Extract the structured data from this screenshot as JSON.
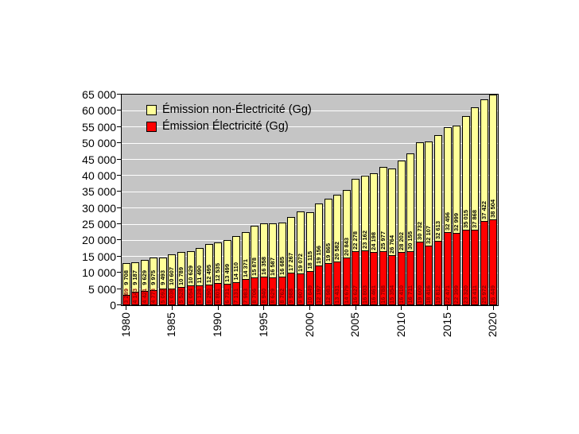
{
  "legend": {
    "items": [
      {
        "label": "Émission non-Électricité (Gg)",
        "color": "#ffff99",
        "icon": "yellow-swatch-icon"
      },
      {
        "label": "Émission Électricité (Gg)",
        "color": "#ff0000",
        "icon": "red-swatch-icon"
      }
    ]
  },
  "y_axis": {
    "tick_labels": [
      "0",
      "5 000",
      "10 000",
      "15 000",
      "20 000",
      "25 000",
      "30 000",
      "35 000",
      "40 000",
      "45 000",
      "50 000",
      "55 000",
      "60 000",
      "65 000"
    ],
    "min": 0,
    "max": 65000,
    "step": 5000
  },
  "x_axis": {
    "tick_labels": [
      "1980",
      "1985",
      "1990",
      "1995",
      "2000",
      "2005",
      "2010",
      "2015",
      "2020"
    ]
  },
  "chart_data": {
    "type": "bar",
    "stacked": true,
    "title": "",
    "xlabel": "",
    "ylabel": "",
    "ylim": [
      0,
      65000
    ],
    "grid": "horizontal-white-on-gray",
    "legend_position": "top-left-inside",
    "x": [
      1980,
      1981,
      1982,
      1983,
      1984,
      1985,
      1986,
      1987,
      1988,
      1989,
      1990,
      1991,
      1992,
      1993,
      1994,
      1995,
      1996,
      1997,
      1998,
      1999,
      2000,
      2001,
      2002,
      2003,
      2004,
      2005,
      2006,
      2007,
      2008,
      2009,
      2010,
      2011,
      2012,
      2013,
      2014,
      2015,
      2016,
      2017,
      2018,
      2019,
      2020
    ],
    "series": [
      {
        "name": "Émission Électricité (Gg)",
        "color": "#ff0000",
        "label_color": "#8b0000",
        "values": [
          3289,
          4143,
          4421,
          4773,
          5092,
          5036,
          5528,
          6054,
          6128,
          6290,
          6801,
          6731,
          7131,
          7983,
          8706,
          8940,
          8629,
          8762,
          9988,
          9907,
          10649,
          12197,
          12983,
          13431,
          14679,
          16627,
          16803,
          16461,
          16788,
          15354,
          16410,
          16711,
          19600,
          18416,
          19812,
          22471,
          22399,
          23320,
          23411,
          25972,
          26449
        ]
      },
      {
        "name": "Émission non-Électricité (Gg)",
        "color": "#ffff99",
        "label_color": "#000000",
        "values": [
          9708,
          9187,
          9629,
          9975,
          9493,
          10607,
          10789,
          10629,
          11490,
          12495,
          12535,
          13499,
          14110,
          14371,
          15878,
          16358,
          16587,
          16685,
          17267,
          19072,
          18115,
          19156,
          19865,
          20582,
          20843,
          22278,
          23162,
          24198,
          25977,
          26764,
          28202,
          30155,
          30732,
          32107,
          32613,
          32456,
          32999,
          35015,
          37868,
          37422,
          38504
        ]
      }
    ],
    "value_label_format": "space-thousands"
  }
}
